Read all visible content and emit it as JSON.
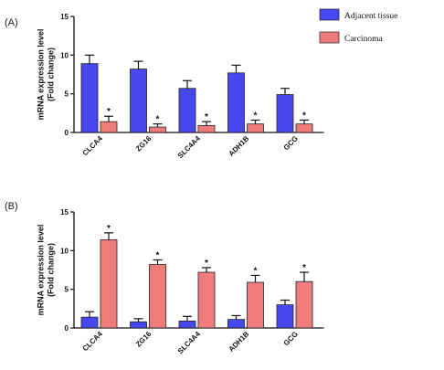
{
  "colors": {
    "adjacent": "#4747f0",
    "carcinoma": "#f07b7b"
  },
  "chart_data": [
    {
      "type": "bar",
      "panel_label": "(A)",
      "ylabel": "mRNA expression level\n(Fold change)",
      "ylim": [
        0,
        15
      ],
      "yticks": [
        "0",
        "5",
        "10",
        "15"
      ],
      "categories": [
        "CLCA4",
        "ZG16",
        "SLC4A4",
        "ADH1B",
        "GCG"
      ],
      "legend": {
        "position": "top-right"
      },
      "series": [
        {
          "name": "Adjacent tissue",
          "values": [
            8.9,
            8.2,
            5.7,
            7.7,
            4.9
          ],
          "errors": [
            1.1,
            1.0,
            1.0,
            1.0,
            0.8
          ]
        },
        {
          "name": "Carcinoma",
          "values": [
            1.4,
            0.7,
            0.9,
            1.1,
            1.1
          ],
          "errors": [
            0.7,
            0.4,
            0.5,
            0.5,
            0.5
          ]
        }
      ],
      "significance": [
        "*",
        "*",
        "*",
        "*",
        "*"
      ]
    },
    {
      "type": "bar",
      "panel_label": "(B)",
      "ylabel": "mRNA expression level\n(Fold change)",
      "ylim": [
        0,
        15
      ],
      "yticks": [
        "0",
        "5",
        "10",
        "15"
      ],
      "categories": [
        "CLCA4",
        "ZG16",
        "SLC4A4",
        "ADH1B",
        "GCG"
      ],
      "series": [
        {
          "name": "Adjacent tissue",
          "values": [
            1.4,
            0.8,
            0.9,
            1.1,
            3.0
          ],
          "errors": [
            0.7,
            0.4,
            0.6,
            0.5,
            0.6
          ]
        },
        {
          "name": "Carcinoma",
          "values": [
            11.4,
            8.2,
            7.2,
            5.9,
            6.0
          ],
          "errors": [
            0.9,
            0.6,
            0.6,
            0.9,
            1.2
          ]
        }
      ],
      "significance": [
        "*",
        "*",
        "*",
        "*",
        "*"
      ]
    }
  ]
}
